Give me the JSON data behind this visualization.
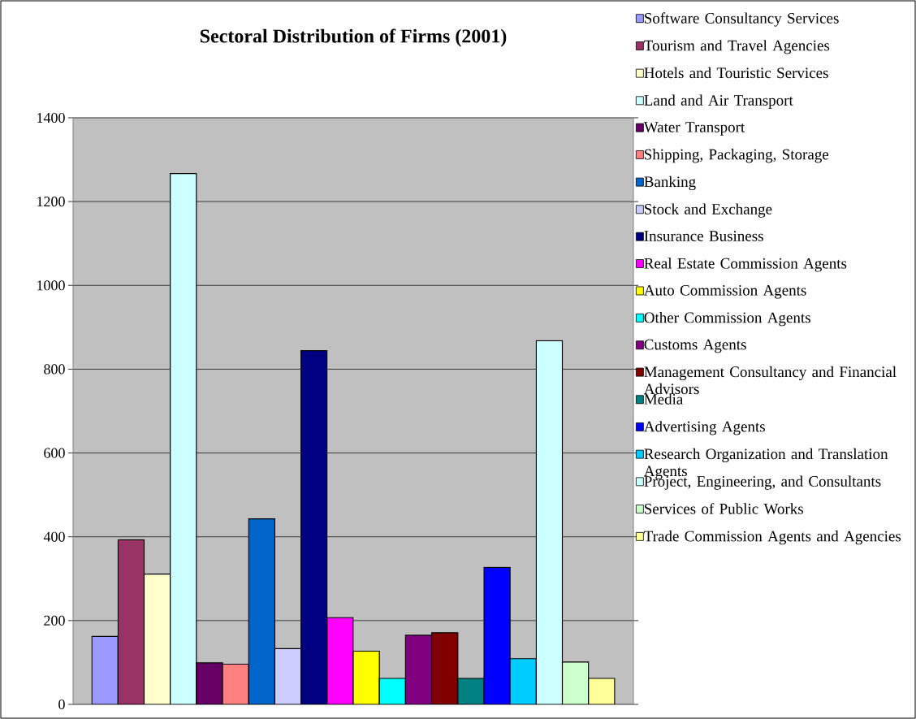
{
  "chart_data": {
    "type": "bar",
    "title": "Sectoral Distribution of Firms (2001)",
    "categories": [
      null
    ],
    "ylim": [
      0,
      1400
    ],
    "yticks": [
      0,
      200,
      400,
      600,
      800,
      1000,
      1200,
      1400
    ],
    "grid": "y",
    "legend": "right",
    "series": [
      {
        "name": "Software Consultancy Services",
        "color": "#9999ff",
        "values": [
          162
        ]
      },
      {
        "name": "Tourism and Travel Agencies",
        "color": "#993366",
        "values": [
          393
        ]
      },
      {
        "name": "Hotels and Touristic Services",
        "color": "#ffffcc",
        "values": [
          311
        ]
      },
      {
        "name": "Land and Air Transport",
        "color": "#ccffff",
        "values": [
          1267
        ]
      },
      {
        "name": "Water Transport",
        "color": "#660066",
        "values": [
          99
        ]
      },
      {
        "name": "Shipping, Packaging, Storage",
        "color": "#ff8080",
        "values": [
          96
        ]
      },
      {
        "name": "Banking",
        "color": "#0066cc",
        "values": [
          443
        ]
      },
      {
        "name": "Stock and Exchange",
        "color": "#ccccff",
        "values": [
          133
        ]
      },
      {
        "name": "Insurance Business",
        "color": "#000080",
        "values": [
          844
        ]
      },
      {
        "name": "Real Estate Commission Agents",
        "color": "#ff00ff",
        "values": [
          207
        ]
      },
      {
        "name": "Auto Commission Agents",
        "color": "#ffff00",
        "values": [
          127
        ]
      },
      {
        "name": "Other Commission Agents",
        "color": "#00ffff",
        "values": [
          62
        ]
      },
      {
        "name": "Customs Agents",
        "color": "#800080",
        "values": [
          165
        ]
      },
      {
        "name": "Management Consultancy and Financial Advisors",
        "color": "#800000",
        "values": [
          171
        ]
      },
      {
        "name": "Media",
        "color": "#008080",
        "values": [
          62
        ]
      },
      {
        "name": "Advertising Agents",
        "color": "#0000ff",
        "values": [
          327
        ]
      },
      {
        "name": "Research Organization and Translation Agents",
        "color": "#00ccff",
        "values": [
          109
        ]
      },
      {
        "name": "Project, Engineering, and Consultants",
        "color": "#ccffff",
        "values": [
          868
        ]
      },
      {
        "name": "Services of Public Works",
        "color": "#ccffcc",
        "values": [
          101
        ]
      },
      {
        "name": "Trade Commission Agents and Agencies",
        "color": "#ffff99",
        "values": [
          62
        ]
      }
    ]
  }
}
